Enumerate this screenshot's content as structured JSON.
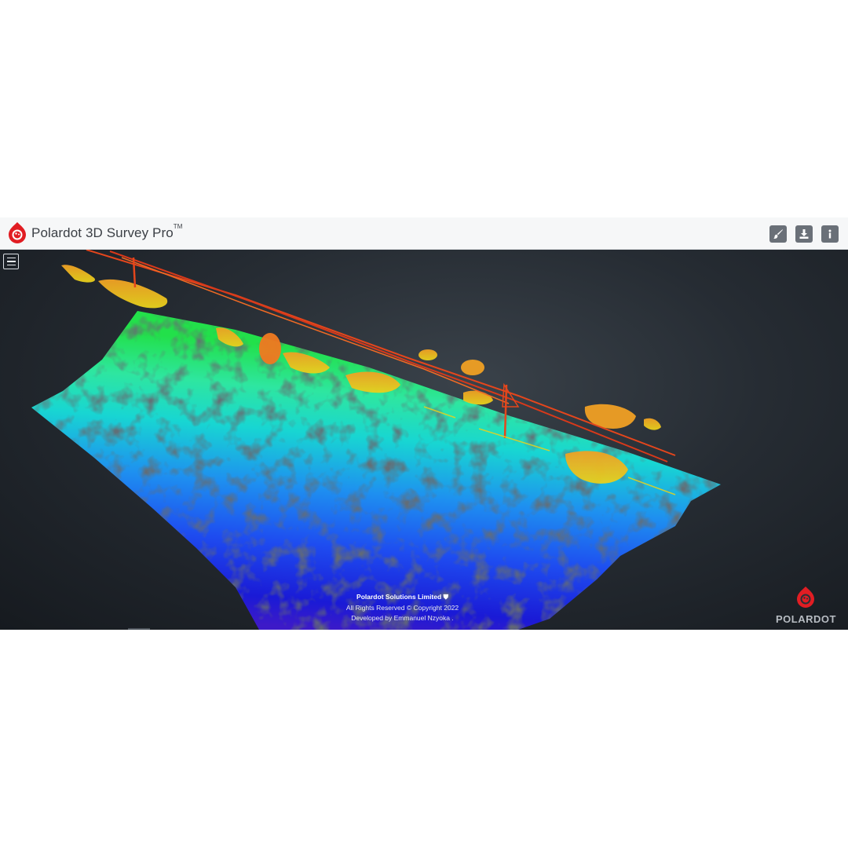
{
  "app": {
    "title": "Polardot 3D Survey Pro",
    "trademark": "TM",
    "brand_color": "#e11d23"
  },
  "toolbar": {
    "buttons": [
      {
        "name": "brush-icon"
      },
      {
        "name": "download-icon"
      },
      {
        "name": "info-icon"
      }
    ]
  },
  "viewer": {
    "menu_icon": "hamburger-icon",
    "point_cloud_colormap": [
      "#1a1ad6",
      "#1e6bf0",
      "#18d6d2",
      "#22e04a",
      "#e8d21c",
      "#f08a1e",
      "#e0401a"
    ]
  },
  "footer": {
    "company": "Polardot Solutions Limited",
    "copyright": "All Rights Reserved © Copyright 2022",
    "developer": "Developed by Emmanuel Nzyoka ."
  },
  "watermark": {
    "text": "POLARDOT"
  }
}
